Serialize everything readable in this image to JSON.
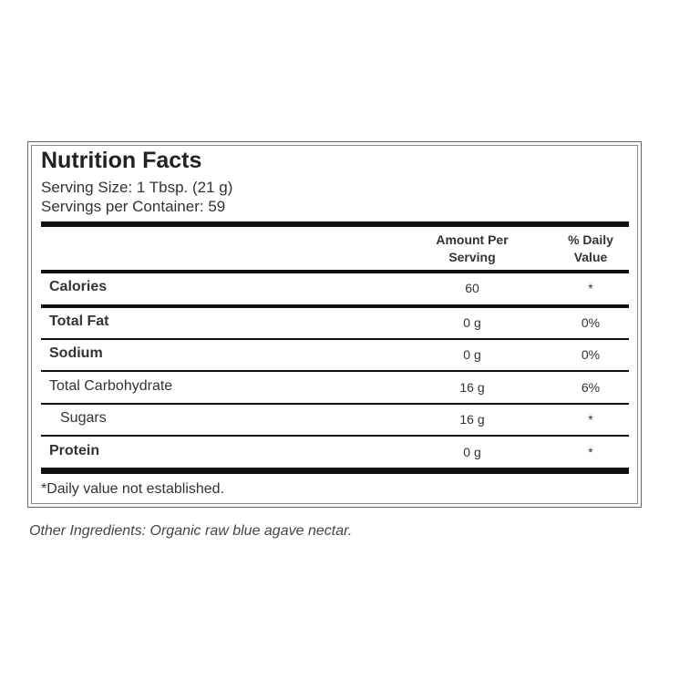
{
  "label": {
    "title": "Nutrition Facts",
    "serving_size": "Serving Size: 1 Tbsp. (21 g)",
    "servings_per_container": "Servings per Container: 59",
    "header": {
      "amount": "Amount Per Serving",
      "daily_value": "% Daily Value"
    },
    "rows": [
      [
        "Calories",
        "60",
        "*"
      ],
      [
        "Total Fat",
        "0 g",
        "0%"
      ],
      [
        "Sodium",
        "0 g",
        "0%"
      ],
      [
        "Total Carbohydrate",
        "16 g",
        "6%"
      ],
      [
        "Sugars",
        "16 g",
        "*"
      ],
      [
        "Protein",
        "0 g",
        "*"
      ]
    ],
    "footnote": "*Daily value not established."
  },
  "ingredients": "Other Ingredients: Organic raw blue agave nectar."
}
